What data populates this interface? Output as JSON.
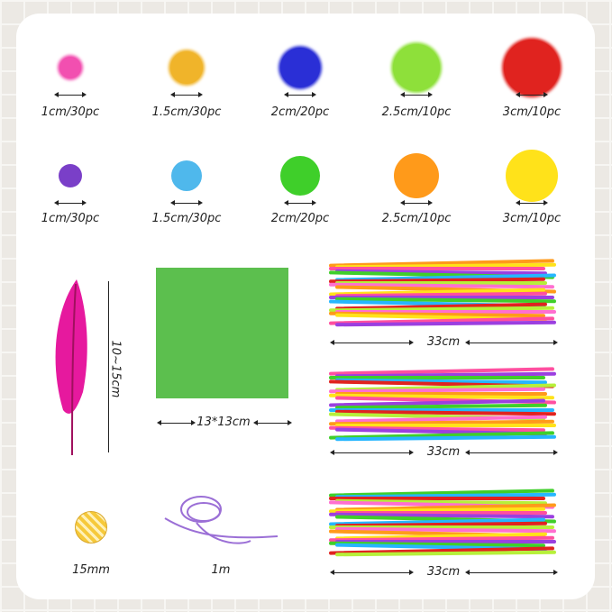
{
  "pompoms_row1": [
    {
      "label": "1cm/30pc",
      "color": "#f24fb0"
    },
    {
      "label": "1.5cm/30pc",
      "color": "#f0b42a"
    },
    {
      "label": "2cm/20pc",
      "color": "#2a2fd6"
    },
    {
      "label": "2.5cm/10pc",
      "color": "#8ee03a"
    },
    {
      "label": "3cm/10pc",
      "color": "#e0231f"
    }
  ],
  "pompoms_row2": [
    {
      "label": "1cm/30pc",
      "color": "#7a3fc8"
    },
    {
      "label": "1.5cm/30pc",
      "color": "#4fb8ec"
    },
    {
      "label": "2cm/20pc",
      "color": "#3fcf2a"
    },
    {
      "label": "2.5cm/10pc",
      "color": "#ff9a1a"
    },
    {
      "label": "3cm/10pc",
      "color": "#ffe21a"
    }
  ],
  "feather": {
    "label": "10~15cm",
    "color": "#e6199e"
  },
  "felt": {
    "label": "13*13cm",
    "color": "#5cbf4e"
  },
  "pipes": [
    {
      "label": "33cm"
    },
    {
      "label": "33cm"
    },
    {
      "label": "33cm"
    }
  ],
  "button": {
    "label": "15mm",
    "color": "#f6c93a"
  },
  "cord": {
    "label": "1m",
    "color": "#9b6fd6"
  }
}
